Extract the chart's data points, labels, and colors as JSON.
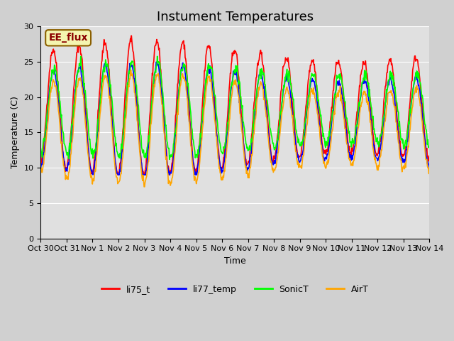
{
  "title": "Instument Temperatures",
  "xlabel": "Time",
  "ylabel": "Temperature (C)",
  "ylim": [
    0,
    30
  ],
  "yticks": [
    0,
    5,
    10,
    15,
    20,
    25,
    30
  ],
  "annotation": "EE_flux",
  "plot_bg": "#e0e0e0",
  "series": [
    "li75_t",
    "li77_temp",
    "SonicT",
    "AirT"
  ],
  "colors": [
    "red",
    "blue",
    "lime",
    "orange"
  ],
  "linewidths": [
    1.2,
    1.2,
    1.2,
    1.2
  ],
  "n_days": 16,
  "samples_per_day": 48,
  "day_labels": [
    "Oct 30",
    "Oct 31",
    "Nov 1",
    "Nov 2",
    "Nov 3",
    "Nov 4",
    "Nov 5",
    "Nov 6",
    "Nov 7",
    "Nov 8",
    "Nov 9",
    "Nov 10",
    "Nov 11",
    "Nov 12",
    "Nov 13",
    "Nov 14"
  ],
  "title_fontsize": 13,
  "axis_fontsize": 9,
  "tick_fontsize": 8,
  "legend_fontsize": 9
}
